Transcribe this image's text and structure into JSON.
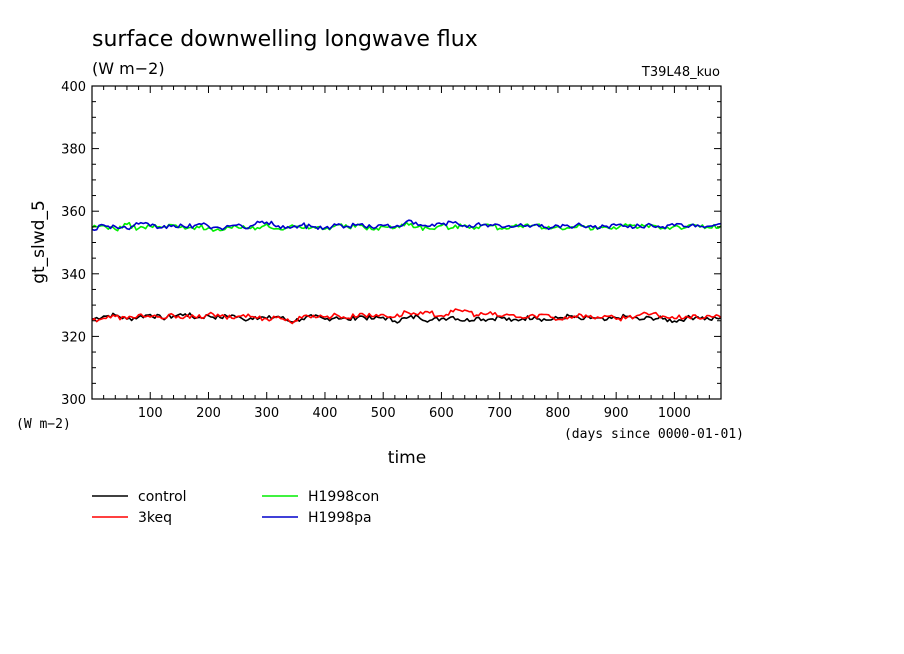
{
  "chart_data": {
    "type": "line",
    "title": "surface downwelling longwave flux",
    "subtitle": "(W m−2)",
    "run_label": "T39L48_kuo",
    "ylabel": "gt_slwd_5",
    "yunit": "(W m−2)",
    "xlabel": "time",
    "xunit": "(days since 0000-01-01)",
    "xlim": [
      0,
      1080
    ],
    "ylim": [
      300,
      400
    ],
    "xticks": [
      100,
      200,
      300,
      400,
      500,
      600,
      700,
      800,
      900,
      1000
    ],
    "yticks": [
      300,
      320,
      340,
      360,
      380,
      400
    ],
    "legend_position": "below",
    "series": [
      {
        "name": "control",
        "color": "#000000",
        "x": [
          0,
          20,
          40,
          60,
          80,
          100,
          120,
          140,
          160,
          180,
          200,
          220,
          240,
          260,
          280,
          300,
          320,
          340,
          360,
          380,
          400,
          420,
          440,
          460,
          480,
          500,
          520,
          540,
          560,
          580,
          600,
          620,
          640,
          660,
          680,
          700,
          720,
          740,
          760,
          780,
          800,
          820,
          840,
          860,
          880,
          900,
          920,
          940,
          960,
          980,
          1000,
          1020,
          1040,
          1060,
          1080
        ],
        "y": [
          325.5,
          326.5,
          326.8,
          325.5,
          326.2,
          327.0,
          325.8,
          326.5,
          327.2,
          325.9,
          326.6,
          326.0,
          326.8,
          325.4,
          326.3,
          325.7,
          326.4,
          324.8,
          325.6,
          326.3,
          325.5,
          326.2,
          325.3,
          326.5,
          325.6,
          326.1,
          324.9,
          325.8,
          326.4,
          325.1,
          325.7,
          326.3,
          325.0,
          326.0,
          325.4,
          326.2,
          324.9,
          325.7,
          326.3,
          325.2,
          325.8,
          326.5,
          325.4,
          326.0,
          325.1,
          325.9,
          326.4,
          325.3,
          326.0,
          325.6,
          324.9,
          325.8,
          326.3,
          325.4,
          325.9
        ]
      },
      {
        "name": "3keq",
        "color": "#ff0000",
        "x": [
          0,
          20,
          40,
          60,
          80,
          100,
          120,
          140,
          160,
          180,
          200,
          220,
          240,
          260,
          280,
          300,
          320,
          340,
          360,
          380,
          400,
          420,
          440,
          460,
          480,
          500,
          520,
          540,
          560,
          580,
          600,
          620,
          640,
          660,
          680,
          700,
          720,
          740,
          760,
          780,
          800,
          820,
          840,
          860,
          880,
          900,
          920,
          940,
          960,
          980,
          1000,
          1020,
          1040,
          1060,
          1080
        ],
        "y": [
          325.2,
          325.8,
          326.4,
          325.6,
          326.9,
          326.2,
          325.7,
          326.8,
          326.3,
          325.9,
          327.1,
          326.4,
          325.8,
          326.9,
          326.1,
          325.6,
          326.3,
          324.6,
          325.9,
          326.7,
          326.2,
          326.9,
          325.8,
          327.3,
          326.4,
          327.0,
          326.2,
          327.8,
          326.9,
          327.5,
          326.6,
          327.9,
          328.4,
          326.8,
          327.3,
          326.5,
          326.9,
          325.8,
          326.6,
          327.0,
          325.4,
          326.3,
          326.9,
          325.9,
          326.6,
          325.5,
          326.2,
          326.8,
          327.1,
          326.5,
          325.7,
          326.4,
          325.9,
          326.6,
          326.0
        ]
      },
      {
        "name": "H1998con",
        "color": "#00ee00",
        "x": [
          0,
          20,
          40,
          60,
          80,
          100,
          120,
          140,
          160,
          180,
          200,
          220,
          240,
          260,
          280,
          300,
          320,
          340,
          360,
          380,
          400,
          420,
          440,
          460,
          480,
          500,
          520,
          540,
          560,
          580,
          600,
          620,
          640,
          660,
          680,
          700,
          720,
          740,
          760,
          780,
          800,
          820,
          840,
          860,
          880,
          900,
          920,
          940,
          960,
          980,
          1000,
          1020,
          1040,
          1060,
          1080
        ],
        "y": [
          354.6,
          355.4,
          354.2,
          355.8,
          354.5,
          355.2,
          354.8,
          355.6,
          354.3,
          355.1,
          354.7,
          353.8,
          354.6,
          355.3,
          354.1,
          355.9,
          354.4,
          355.2,
          354.6,
          355.0,
          354.3,
          355.7,
          354.8,
          355.5,
          354.2,
          355.1,
          354.6,
          356.4,
          355.0,
          354.3,
          355.4,
          354.7,
          355.6,
          354.9,
          355.8,
          354.5,
          355.2,
          354.8,
          355.5,
          354.4,
          355.1,
          354.6,
          355.3,
          354.2,
          355.0,
          354.3,
          355.4,
          354.9,
          355.7,
          354.6,
          355.2,
          354.8,
          355.5,
          354.7,
          355.3
        ]
      },
      {
        "name": "H1998pa",
        "color": "#0000cc",
        "x": [
          0,
          20,
          40,
          60,
          80,
          100,
          120,
          140,
          160,
          180,
          200,
          220,
          240,
          260,
          280,
          300,
          320,
          340,
          360,
          380,
          400,
          420,
          440,
          460,
          480,
          500,
          520,
          540,
          560,
          580,
          600,
          620,
          640,
          660,
          680,
          700,
          720,
          740,
          760,
          780,
          800,
          820,
          840,
          860,
          880,
          900,
          920,
          940,
          960,
          980,
          1000,
          1020,
          1040,
          1060,
          1080
        ],
        "y": [
          354.2,
          355.6,
          355.1,
          354.4,
          355.9,
          355.3,
          354.7,
          355.5,
          354.9,
          355.7,
          355.2,
          354.6,
          355.4,
          354.8,
          355.8,
          356.5,
          355.3,
          354.6,
          355.5,
          355.0,
          354.7,
          355.6,
          355.1,
          355.8,
          354.9,
          355.4,
          355.0,
          356.7,
          355.5,
          355.2,
          355.9,
          356.3,
          355.4,
          355.8,
          355.0,
          355.5,
          354.9,
          355.3,
          355.7,
          354.8,
          355.4,
          355.0,
          355.6,
          354.9,
          355.2,
          355.5,
          354.8,
          355.3,
          355.7,
          355.0,
          355.4,
          355.1,
          355.6,
          355.2,
          356.0
        ]
      }
    ]
  }
}
